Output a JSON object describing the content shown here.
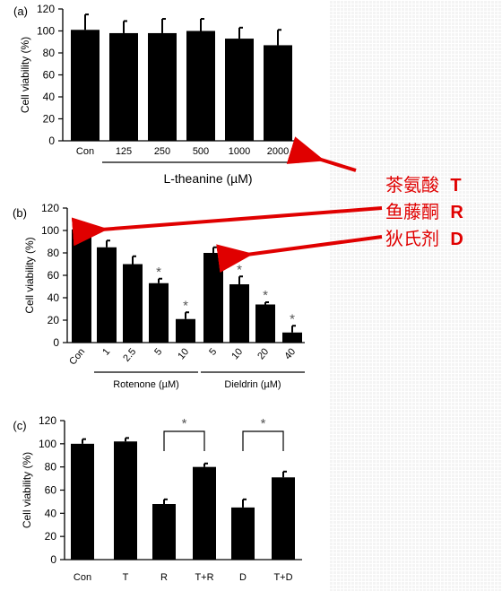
{
  "chart_data": [
    {
      "panel": "(a)",
      "type": "bar",
      "ylabel": "Cell viability (%)",
      "xlabel": "L-theanine (µM)",
      "ylim": [
        0,
        120
      ],
      "yticks": [
        0,
        20,
        40,
        60,
        80,
        100,
        120
      ],
      "categories": [
        "Con",
        "125",
        "250",
        "500",
        "1000",
        "2000"
      ],
      "values": [
        101,
        98,
        98,
        100,
        93,
        87
      ],
      "errors": [
        14,
        11,
        13,
        11,
        10,
        14
      ],
      "significant": [
        false,
        false,
        false,
        false,
        false,
        false
      ],
      "grid": false,
      "bar_color": "#000000"
    },
    {
      "panel": "(b)",
      "type": "bar",
      "ylabel": "Cell viability (%)",
      "ylim": [
        0,
        120
      ],
      "yticks": [
        0,
        20,
        40,
        60,
        80,
        100,
        120
      ],
      "categories": [
        "Con",
        "1",
        "2.5",
        "5",
        "10",
        "5",
        "10",
        "20",
        "40"
      ],
      "values": [
        101,
        85,
        70,
        53,
        21,
        80,
        52,
        34,
        9
      ],
      "errors": [
        6,
        6,
        7,
        4,
        6,
        5,
        7,
        2,
        6
      ],
      "significant": [
        false,
        false,
        false,
        true,
        true,
        false,
        true,
        true,
        true
      ],
      "groups": [
        {
          "label": "Rotenone (µM)",
          "from": 1,
          "to": 4
        },
        {
          "label": "Dieldrin (µM)",
          "from": 5,
          "to": 8
        }
      ],
      "grid": false,
      "bar_color": "#000000"
    },
    {
      "panel": "(c)",
      "type": "bar",
      "ylabel": "Cell viability (%)",
      "ylim": [
        0,
        120
      ],
      "yticks": [
        0,
        20,
        40,
        60,
        80,
        100,
        120
      ],
      "categories": [
        "Con",
        "T",
        "R",
        "T+R",
        "D",
        "T+D"
      ],
      "values": [
        100,
        102,
        48,
        80,
        45,
        71
      ],
      "errors": [
        4,
        3,
        4,
        3,
        7,
        5
      ],
      "comparisons": [
        {
          "from": 2,
          "to": 3,
          "label": "*"
        },
        {
          "from": 4,
          "to": 5,
          "label": "*"
        }
      ],
      "grid": false,
      "bar_color": "#000000"
    }
  ],
  "annotations": {
    "legend_lines": [
      {
        "name": "茶氨酸",
        "code": "T"
      },
      {
        "name": "鱼藤酮",
        "code": "R"
      },
      {
        "name": "狄氏剂",
        "code": "D"
      }
    ],
    "arrow_color": "#e00000"
  }
}
